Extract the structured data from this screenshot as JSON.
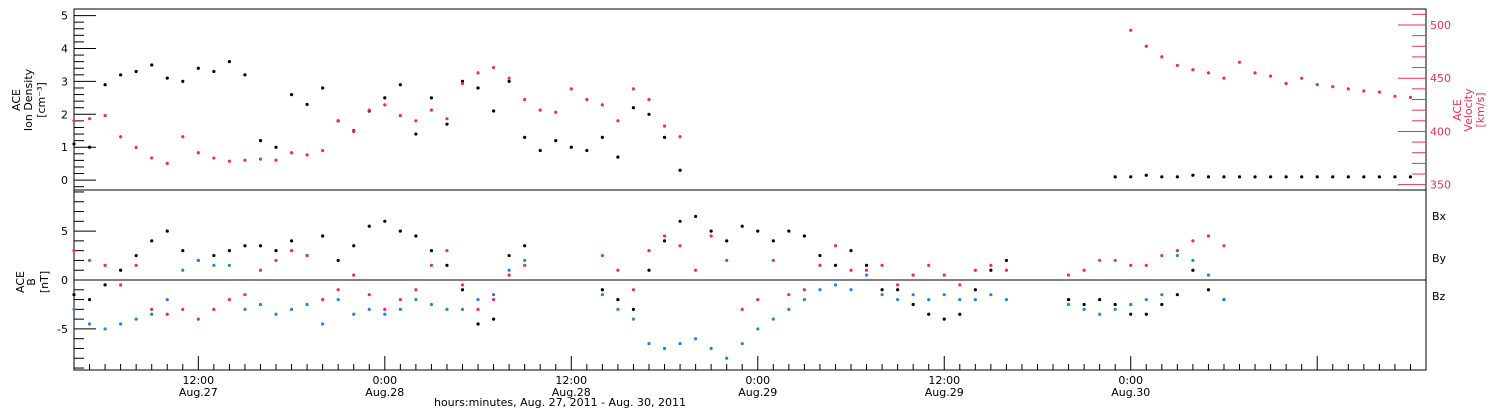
{
  "colors": {
    "black": "#000000",
    "red": "#e8305a",
    "blue": "#2385e0"
  },
  "chart_data": [
    {
      "type": "scatter",
      "panel": "top",
      "ylabel_left": [
        "ACE",
        "Ion Density",
        "[cm⁻³]"
      ],
      "ylabel_right": [
        "ACE",
        "Velocity",
        "[km/s]"
      ],
      "ylim_left": [
        -0.3,
        5.2
      ],
      "ylim_right": [
        345,
        515
      ],
      "yticks_left": [
        "0",
        "1",
        "2",
        "3",
        "4",
        "5"
      ],
      "yticks_right": [
        "350",
        "400",
        "450",
        "500"
      ],
      "grid": false,
      "xlim_hours": [
        4,
        91
      ],
      "series": [
        {
          "name": "Ion Density",
          "color": "black",
          "axis": "left",
          "x": [
            4,
            5,
            6,
            7,
            8,
            9,
            10,
            11,
            12,
            13,
            14,
            15,
            16,
            17,
            18,
            19,
            20,
            21,
            22,
            23,
            24,
            25,
            26,
            27,
            28,
            29,
            30,
            31,
            32,
            33,
            34,
            35,
            36,
            37,
            38,
            39,
            40,
            41,
            42,
            43,
            44,
            45,
            46,
            47,
            48,
            49,
            50,
            51,
            52,
            53,
            54,
            55,
            56,
            57,
            58,
            59,
            60,
            61,
            62,
            63,
            64,
            65,
            66,
            67,
            68,
            69,
            70,
            71,
            72,
            73,
            74,
            75,
            76,
            77,
            78,
            79,
            80,
            81,
            82,
            83,
            84,
            85,
            86,
            87,
            88,
            89,
            90
          ],
          "y": [
            1.1,
            1.0,
            2.9,
            3.2,
            3.3,
            3.5,
            3.1,
            3.0,
            3.4,
            3.3,
            3.6,
            3.2,
            1.2,
            1.0,
            2.6,
            2.3,
            2.8,
            1.8,
            1.5,
            2.1,
            2.5,
            2.9,
            1.4,
            2.5,
            1.7,
            3.0,
            2.8,
            2.1,
            3.0,
            1.3,
            0.9,
            1.2,
            1.0,
            0.9,
            1.3,
            0.7,
            2.2,
            2.0,
            1.3,
            0.3,
            null,
            null,
            null,
            null,
            null,
            null,
            null,
            null,
            null,
            null,
            null,
            null,
            null,
            null,
            null,
            null,
            null,
            null,
            null,
            null,
            null,
            null,
            null,
            null,
            null,
            null,
            null,
            0.1,
            0.1,
            0.15,
            0.1,
            0.1,
            0.15,
            0.1,
            0.1,
            0.1,
            0.1,
            0.1,
            0.1,
            0.1,
            0.1,
            0.1,
            0.1,
            0.1,
            0.1,
            0.1,
            0.1
          ]
        },
        {
          "name": "Velocity",
          "color": "red",
          "axis": "right",
          "x": [
            4,
            5,
            6,
            7,
            8,
            9,
            10,
            11,
            12,
            13,
            14,
            15,
            16,
            17,
            18,
            19,
            20,
            21,
            22,
            23,
            24,
            25,
            26,
            27,
            28,
            29,
            30,
            31,
            32,
            33,
            34,
            35,
            36,
            37,
            38,
            39,
            40,
            41,
            42,
            43,
            44,
            45,
            46,
            47,
            48,
            49,
            50,
            51,
            52,
            53,
            54,
            55,
            56,
            57,
            58,
            59,
            60,
            61,
            62,
            63,
            64,
            65,
            66,
            67,
            68,
            69,
            70,
            71,
            72,
            73,
            74,
            75,
            76,
            77,
            78,
            79,
            80,
            81,
            82,
            83,
            84,
            85,
            86,
            87,
            88,
            89,
            90
          ],
          "y": [
            410,
            412,
            415,
            395,
            385,
            375,
            370,
            395,
            380,
            375,
            372,
            373,
            374,
            373,
            380,
            378,
            382,
            410,
            400,
            420,
            425,
            415,
            410,
            420,
            412,
            445,
            455,
            460,
            450,
            430,
            420,
            418,
            440,
            430,
            425,
            410,
            440,
            430,
            405,
            395,
            null,
            null,
            null,
            null,
            null,
            null,
            null,
            null,
            null,
            null,
            null,
            null,
            null,
            null,
            null,
            null,
            null,
            null,
            null,
            null,
            null,
            null,
            null,
            null,
            null,
            null,
            null,
            null,
            495,
            480,
            470,
            462,
            458,
            455,
            450,
            465,
            455,
            452,
            445,
            450,
            444,
            442,
            440,
            438,
            437,
            433,
            432
          ]
        }
      ]
    },
    {
      "type": "scatter",
      "panel": "bottom",
      "ylabel_left": [
        "ACE",
        "B",
        "[nT]"
      ],
      "ylim": [
        -9.2,
        9.2
      ],
      "yticks": [
        "-5",
        "0",
        "5"
      ],
      "grid": false,
      "legend": [
        "Bx",
        "By",
        "Bz"
      ],
      "legend_position": "right",
      "x_tick_labels": [
        [
          "12:00",
          "Aug.27"
        ],
        [
          "0:00",
          "Aug.28"
        ],
        [
          "12:00",
          "Aug.28"
        ],
        [
          "0:00",
          "Aug.29"
        ],
        [
          "12:00",
          "Aug.29"
        ],
        [
          "0:00",
          "Aug.30"
        ]
      ],
      "x_tick_hours": [
        12,
        24,
        36,
        48,
        60,
        72
      ],
      "xlabel": "hours:minutes, Aug. 27, 2011 - Aug. 30, 2011",
      "xlim_hours": [
        4,
        91
      ],
      "series": [
        {
          "name": "Bx",
          "color": "black",
          "x": [
            4,
            5,
            6,
            7,
            8,
            9,
            10,
            11,
            12,
            13,
            14,
            15,
            16,
            17,
            18,
            19,
            20,
            21,
            22,
            23,
            24,
            25,
            26,
            27,
            28,
            29,
            30,
            31,
            32,
            33,
            34,
            35,
            36,
            37,
            38,
            39,
            40,
            41,
            42,
            43,
            44,
            45,
            46,
            47,
            48,
            49,
            50,
            51,
            52,
            53,
            54,
            55,
            56,
            57,
            58,
            59,
            60,
            61,
            62,
            63,
            64,
            65,
            66,
            67,
            68,
            69,
            70,
            71,
            72,
            73,
            74,
            75,
            76,
            77,
            78,
            79,
            80,
            81,
            82,
            83,
            84,
            85,
            86,
            87,
            88,
            89,
            90
          ],
          "y": [
            -1.5,
            -2.0,
            -0.5,
            1.0,
            2.5,
            4.0,
            5.0,
            3.0,
            2.0,
            2.5,
            3.0,
            3.5,
            3.5,
            3.0,
            4.0,
            2.5,
            4.5,
            2.0,
            3.5,
            5.5,
            6.0,
            5.0,
            4.5,
            3.0,
            1.5,
            -1.0,
            -4.5,
            -4.0,
            2.5,
            3.5,
            null,
            null,
            null,
            null,
            -1.0,
            -2.0,
            -3.0,
            1.0,
            4.0,
            6.0,
            6.5,
            5.0,
            4.0,
            5.5,
            5.0,
            4.0,
            5.0,
            4.5,
            2.5,
            1.5,
            3.0,
            1.5,
            -1.0,
            -1.0,
            -2.5,
            -3.5,
            -4.0,
            -3.5,
            -1.0,
            1.0,
            2.0,
            null,
            null,
            null,
            -2.0,
            -2.5,
            -2.0,
            -2.5,
            -3.5,
            -3.5,
            -2.5,
            -1.5,
            1.0,
            -1.0,
            -2.0,
            null,
            null,
            null,
            null,
            null,
            null,
            null,
            null,
            null,
            null,
            null,
            null
          ]
        },
        {
          "name": "By",
          "color": "blue",
          "x": [
            4,
            5,
            6,
            7,
            8,
            9,
            10,
            11,
            12,
            13,
            14,
            15,
            16,
            17,
            18,
            19,
            20,
            21,
            22,
            23,
            24,
            25,
            26,
            27,
            28,
            29,
            30,
            31,
            32,
            33,
            34,
            35,
            36,
            37,
            38,
            39,
            40,
            41,
            42,
            43,
            44,
            45,
            46,
            47,
            48,
            49,
            50,
            51,
            52,
            53,
            54,
            55,
            56,
            57,
            58,
            59,
            60,
            61,
            62,
            63,
            64,
            65,
            66,
            67,
            68,
            69,
            70,
            71,
            72,
            73,
            74,
            75,
            76,
            77,
            78,
            79,
            80,
            81,
            82,
            83,
            84,
            85,
            86,
            87,
            88,
            89,
            90
          ],
          "y": [
            -3.0,
            -4.5,
            -5.0,
            -4.5,
            -4.0,
            -3.5,
            -2.0,
            1.0,
            2.0,
            1.5,
            1.5,
            -3.0,
            -2.5,
            -3.5,
            -3.0,
            -2.5,
            -4.5,
            -2.0,
            -3.5,
            -3.0,
            -3.5,
            -3.0,
            -2.0,
            -2.5,
            -3.0,
            -3.0,
            -2.0,
            -1.5,
            1.0,
            2.0,
            null,
            null,
            null,
            null,
            -1.5,
            -3.0,
            -4.0,
            -6.5,
            -7.0,
            -6.5,
            -6.0,
            -7.0,
            -8.0,
            -6.5,
            -5.0,
            -4.0,
            -3.0,
            -2.0,
            -1.0,
            -0.5,
            -1.0,
            0.5,
            -1.5,
            -2.0,
            -1.5,
            -2.0,
            -1.5,
            -2.0,
            -2.0,
            -1.5,
            -2.0,
            null,
            null,
            null,
            -2.5,
            -3.0,
            -3.5,
            -3.0,
            -2.5,
            -2.0,
            -1.5,
            2.5,
            2.0,
            0.5,
            -2.0,
            null,
            null,
            null,
            null,
            null,
            null,
            null,
            null,
            null,
            null,
            null,
            null
          ]
        },
        {
          "name": "Bz",
          "color": "red",
          "x": [
            4,
            5,
            6,
            7,
            8,
            9,
            10,
            11,
            12,
            13,
            14,
            15,
            16,
            17,
            18,
            19,
            20,
            21,
            22,
            23,
            24,
            25,
            26,
            27,
            28,
            29,
            30,
            31,
            32,
            33,
            34,
            35,
            36,
            37,
            38,
            39,
            40,
            41,
            42,
            43,
            44,
            45,
            46,
            47,
            48,
            49,
            50,
            51,
            52,
            53,
            54,
            55,
            56,
            57,
            58,
            59,
            60,
            61,
            62,
            63,
            64,
            65,
            66,
            67,
            68,
            69,
            70,
            71,
            72,
            73,
            74,
            75,
            76,
            77,
            78,
            79,
            80,
            81,
            82,
            83,
            84,
            85,
            86,
            87,
            88,
            89,
            90
          ],
          "y": [
            3.0,
            2.0,
            1.5,
            -0.5,
            1.5,
            -3.0,
            -3.5,
            -3.0,
            -4.0,
            -3.0,
            -2.0,
            -1.5,
            1.0,
            2.0,
            3.0,
            2.5,
            -2.0,
            -1.0,
            0.5,
            -1.5,
            -3.0,
            -2.0,
            -1.0,
            1.5,
            3.0,
            -0.5,
            -3.0,
            -2.0,
            0.5,
            1.5,
            null,
            null,
            null,
            null,
            2.5,
            1.0,
            -1.0,
            3.0,
            4.5,
            3.5,
            1.0,
            4.5,
            2.0,
            -3.0,
            -2.0,
            2.0,
            -1.5,
            -1.0,
            1.5,
            3.5,
            1.0,
            1.0,
            1.5,
            -0.5,
            0.5,
            1.5,
            0.5,
            -0.5,
            1.0,
            1.5,
            1.0,
            null,
            null,
            null,
            0.5,
            1.0,
            2.0,
            2.0,
            1.5,
            1.5,
            2.5,
            3.0,
            4.0,
            4.5,
            3.5,
            null,
            null,
            null,
            null,
            null,
            null,
            null,
            null,
            null,
            null,
            null,
            null
          ]
        }
      ]
    }
  ]
}
